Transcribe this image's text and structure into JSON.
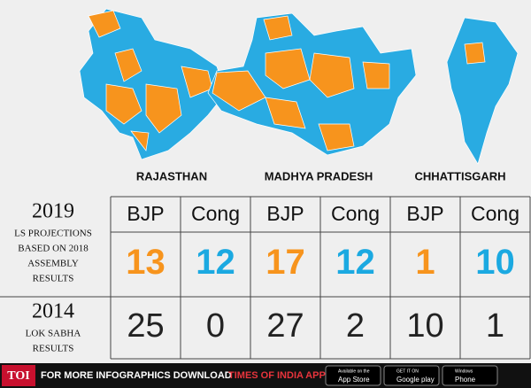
{
  "states": [
    "RAJASTHAN",
    "MADHYA PRADESH",
    "CHHATTISGARH"
  ],
  "table": {
    "headers": [
      "BJP",
      "Cong",
      "BJP",
      "Cong",
      "BJP",
      "Cong"
    ],
    "party_colors": {
      "BJP": "#f7941d",
      "Cong": "#1ba9e1"
    },
    "rows": [
      {
        "year": "2019",
        "label_lines": [
          "LS PROJECTIONS",
          "BASED ON 2018",
          "ASSEMBLY",
          "RESULTS"
        ],
        "values": [
          13,
          12,
          17,
          12,
          1,
          10
        ],
        "colored": true
      },
      {
        "year": "2014",
        "label_lines": [
          "LOK SABHA",
          "RESULTS"
        ],
        "values": [
          25,
          0,
          27,
          2,
          10,
          1
        ],
        "colored": false
      }
    ]
  },
  "footer": {
    "logo": "TOI",
    "text": "FOR MORE  INFOGRAPHICS DOWNLOAD",
    "app": "TIMES OF INDIA  APP",
    "badges": [
      {
        "small": "Available on the",
        "big": "App Store"
      },
      {
        "small": "GET IT ON",
        "big": "Google play"
      },
      {
        "small": "Windows",
        "big": "Phone"
      }
    ]
  }
}
